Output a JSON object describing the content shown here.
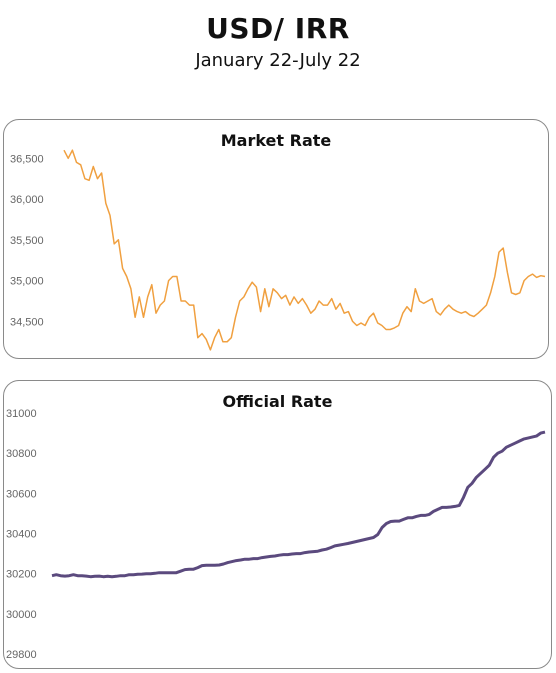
{
  "header": {
    "title": "USD/ IRR",
    "subtitle": "January 22-July 22"
  },
  "chart_data": [
    {
      "type": "line",
      "title": "Market Rate",
      "color": "#f0a040",
      "ylim": [
        34100,
        36700
      ],
      "y_ticks": [
        34500,
        35000,
        35500,
        36000,
        36500
      ],
      "y_tick_labels": [
        "34,500",
        "35,000",
        "35,500",
        "36,000",
        "36,500"
      ],
      "grid": false,
      "series": [
        {
          "values": [
            36600,
            36500,
            36600,
            36450,
            36420,
            36250,
            36230,
            36400,
            36250,
            36320,
            35950,
            35800,
            35450,
            35500,
            35150,
            35050,
            34900,
            34550,
            34800,
            34550,
            34800,
            34950,
            34600,
            34700,
            34750,
            35000,
            35050,
            35050,
            34750,
            34750,
            34700,
            34700,
            34300,
            34350,
            34280,
            34150,
            34300,
            34400,
            34250,
            34250,
            34300,
            34550,
            34750,
            34800,
            34900,
            34980,
            34920,
            34620,
            34900,
            34680,
            34900,
            34850,
            34780,
            34820,
            34700,
            34800,
            34720,
            34780,
            34700,
            34600,
            34650,
            34750,
            34700,
            34700,
            34780,
            34650,
            34720,
            34600,
            34620,
            34500,
            34450,
            34480,
            34450,
            34550,
            34600,
            34480,
            34450,
            34400,
            34400,
            34420,
            34450,
            34600,
            34680,
            34620,
            34900,
            34750,
            34720,
            34750,
            34780,
            34620,
            34580,
            34650,
            34700,
            34650,
            34620,
            34600,
            34620,
            34580,
            34560,
            34600,
            34650,
            34700,
            34850,
            35050,
            35350,
            35400,
            35100,
            34850,
            34830,
            34850,
            35000,
            35050,
            35080,
            35040,
            35060,
            35050
          ]
        }
      ]
    },
    {
      "type": "line",
      "title": "Official Rate",
      "color": "#5b4a7e",
      "ylim": [
        29750,
        31050
      ],
      "y_ticks": [
        29800,
        30000,
        30200,
        30400,
        30600,
        30800,
        31000
      ],
      "y_tick_labels": [
        "29800",
        "30000",
        "30200",
        "30400",
        "30600",
        "30800",
        "31000"
      ],
      "grid": false,
      "series": [
        {
          "values": [
            30190,
            30195,
            30190,
            30188,
            30190,
            30195,
            30190,
            30190,
            30188,
            30185,
            30187,
            30188,
            30185,
            30187,
            30185,
            30187,
            30190,
            30190,
            30195,
            30195,
            30197,
            30198,
            30200,
            30200,
            30202,
            30205,
            30205,
            30205,
            30205,
            30205,
            30212,
            30220,
            30222,
            30222,
            30230,
            30240,
            30242,
            30242,
            30242,
            30243,
            30248,
            30255,
            30260,
            30265,
            30268,
            30272,
            30272,
            30275,
            30275,
            30280,
            30283,
            30286,
            30288,
            30292,
            30295,
            30295,
            30298,
            30300,
            30300,
            30305,
            30308,
            30310,
            30312,
            30318,
            30322,
            30330,
            30338,
            30342,
            30346,
            30350,
            30355,
            30360,
            30365,
            30370,
            30375,
            30380,
            30395,
            30430,
            30450,
            30460,
            30462,
            30462,
            30470,
            30478,
            30478,
            30485,
            30490,
            30490,
            30495,
            30510,
            30520,
            30530,
            30530,
            30532,
            30535,
            30540,
            30580,
            30630,
            30650,
            30680,
            30700,
            30720,
            30740,
            30780,
            30800,
            30810,
            30830,
            30840,
            30850,
            30860,
            30870,
            30875,
            30880,
            30885,
            30900,
            30905
          ]
        }
      ]
    }
  ]
}
